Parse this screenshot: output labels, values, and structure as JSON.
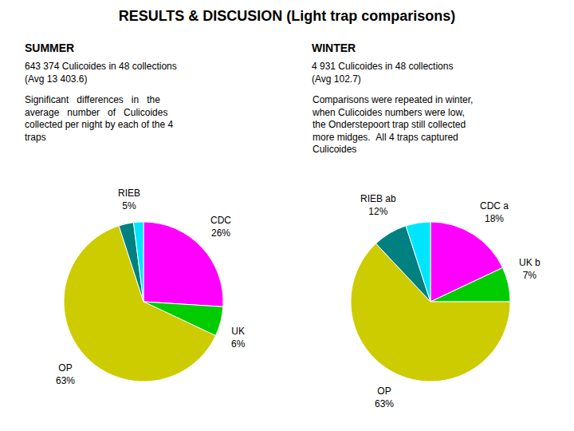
{
  "title": "RESULTS & DISCUSION (Light trap comparisons)",
  "chart_data": [
    {
      "type": "pie",
      "subtitle": "SUMMER",
      "values": [
        26,
        6,
        63,
        3,
        2
      ],
      "colors": [
        "#ff00ff",
        "#00cc00",
        "#cccc00",
        "#008080",
        "#00e5ff"
      ],
      "annotations": [
        {
          "text": "643 374 Culicoides in 48 collections\n(Avg 13 403.6)"
        },
        {
          "text": "Significant   differences   in   the\naverage   number   of   Culicoides\ncollected per night by each of the 4\ntraps"
        },
        {
          "text": "CDC\n26%",
          "slices": [
            0
          ]
        },
        {
          "text": "UK\n6%",
          "slices": [
            1
          ]
        },
        {
          "text": "OP\n63%",
          "slices": [
            2
          ]
        },
        {
          "text": "RIEB\n5%",
          "slices": [
            3,
            4
          ]
        }
      ]
    },
    {
      "type": "pie",
      "subtitle": "WINTER",
      "values": [
        18,
        7,
        63,
        7,
        5
      ],
      "colors": [
        "#ff00ff",
        "#00cc00",
        "#cccc00",
        "#008080",
        "#00e5ff"
      ],
      "annotations": [
        {
          "text": "4 931 Culicoides in 48 collections\n(Avg 102.7)"
        },
        {
          "text": "Comparisons were repeated in winter,\nwhen Culicoides numbers were low,\nthe Onderstepoort trap still collected\nmore midges.  All 4 traps captured\nCulicoides"
        },
        {
          "text": "CDC a\n18%",
          "slices": [
            0
          ]
        },
        {
          "text": "UK b\n7%",
          "slices": [
            1
          ]
        },
        {
          "text": "OP\n63%",
          "slices": [
            2
          ]
        },
        {
          "text": "RIEB ab\n12%",
          "slices": [
            3,
            4
          ]
        }
      ]
    }
  ]
}
